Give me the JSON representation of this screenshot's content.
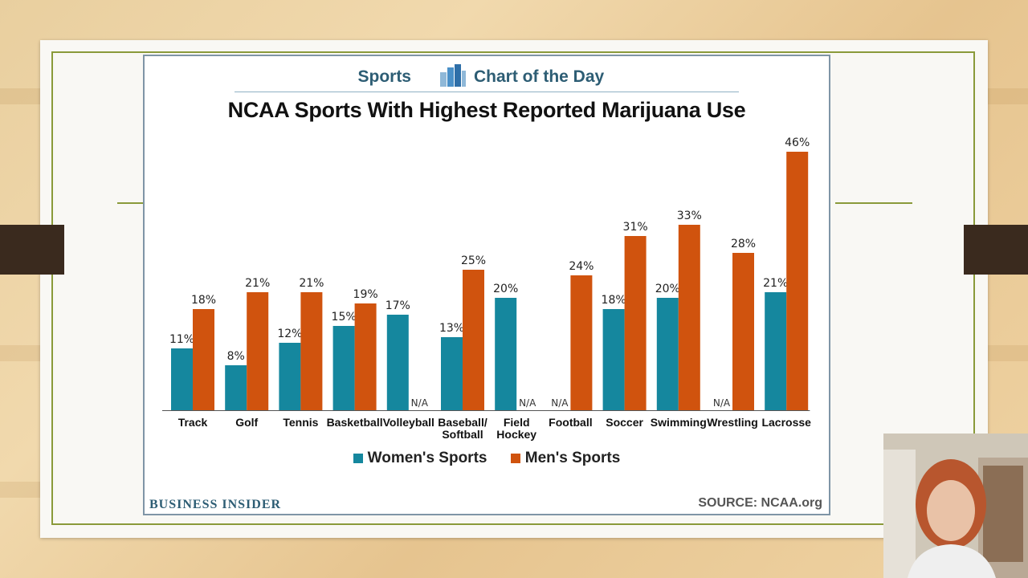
{
  "header": {
    "brand_left": "Sports",
    "brand_right": "Chart of the Day",
    "logo": "bar-chart-logo-icon"
  },
  "chart_data": {
    "type": "bar",
    "title": "NCAA Sports With Highest Reported Marijuana Use",
    "xlabel": "",
    "ylabel": "",
    "ylim": [
      0,
      50
    ],
    "grid": false,
    "legend_position": "bottom-center",
    "categories": [
      [
        "Track"
      ],
      [
        "Golf"
      ],
      [
        "Tennis"
      ],
      [
        "Basketball"
      ],
      [
        "Volleyball"
      ],
      [
        "Baseball/",
        "Softball"
      ],
      [
        "Field",
        "Hockey"
      ],
      [
        "Football"
      ],
      [
        "Soccer"
      ],
      [
        "Swimming"
      ],
      [
        "Wrestling"
      ],
      [
        "Lacrosse"
      ]
    ],
    "series": [
      {
        "name": "Women's Sports",
        "color": "#15879e",
        "values": [
          11,
          8,
          12,
          15,
          17,
          13,
          20,
          null,
          18,
          20,
          null,
          21
        ]
      },
      {
        "name": "Men's Sports",
        "color": "#d0530e",
        "values": [
          18,
          21,
          21,
          19,
          null,
          25,
          null,
          24,
          31,
          33,
          28,
          46
        ]
      }
    ],
    "na_label": "N/A",
    "value_suffix": "%"
  },
  "footer": {
    "publisher": "BUSINESS INSIDER",
    "source": "SOURCE: NCAA.org"
  },
  "colors": {
    "brand_text": "#2d5d74",
    "women": "#15879e",
    "men": "#d0530e",
    "slide_border": "#8a9a3a"
  }
}
